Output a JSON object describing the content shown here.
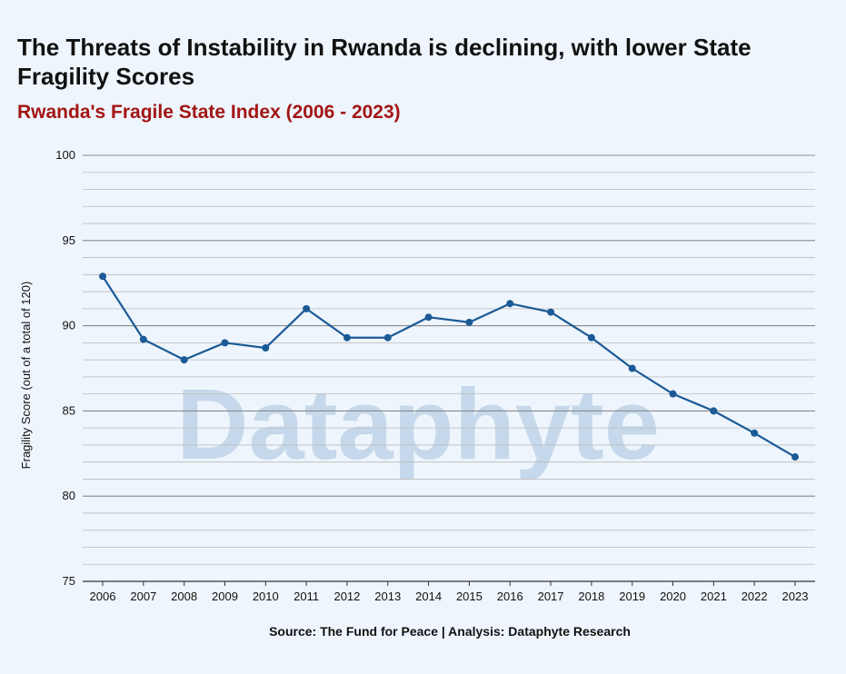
{
  "title": "The Threats of Instability in Rwanda is declining, with lower State Fragility Scores",
  "subtitle": "Rwanda's Fragile State Index (2006 - 2023)",
  "source": "Source: The Fund for Peace | Analysis: Dataphyte Research",
  "watermark": "Dataphyte",
  "colors": {
    "background": "#eef5fc",
    "line": "#1b5a96",
    "subtitle": "#a31515",
    "grid_major": "#8a8a8a",
    "grid_minor": "#bcbcbc",
    "watermark": "#b9cfe6"
  },
  "chart_data": {
    "type": "line",
    "title": "The Threats of Instability in Rwanda is declining, with lower State Fragility Scores",
    "subtitle": "Rwanda's Fragile State Index (2006 - 2023)",
    "xlabel": "",
    "ylabel": "Fragility Score (out of a total of 120)",
    "ylim": [
      75,
      100
    ],
    "yticks": [
      75,
      80,
      85,
      90,
      95,
      100
    ],
    "grid": true,
    "legend": "none",
    "categories": [
      "2006",
      "2007",
      "2008",
      "2009",
      "2010",
      "2011",
      "2012",
      "2013",
      "2014",
      "2015",
      "2016",
      "2017",
      "2018",
      "2019",
      "2020",
      "2021",
      "2022",
      "2023"
    ],
    "series": [
      {
        "values": [
          92.9,
          89.2,
          88.0,
          89.0,
          88.7,
          91.0,
          89.3,
          89.3,
          90.5,
          90.2,
          91.3,
          90.8,
          89.3,
          87.5,
          86.0,
          85.0,
          83.7,
          82.3
        ]
      }
    ]
  }
}
